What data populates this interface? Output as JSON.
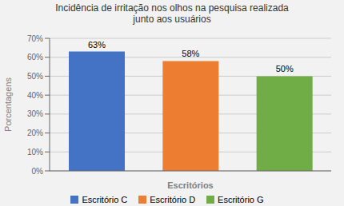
{
  "chart_data": {
    "type": "bar",
    "title": "Incidência de irritação nos olhos na pesquisa realizada\njunto aos usuários",
    "categories": [
      "Escritório C",
      "Escritório D",
      "Escritório G"
    ],
    "values": [
      63,
      58,
      50
    ],
    "value_labels": [
      "63%",
      "58%",
      "50%"
    ],
    "colors": [
      "#4472C4",
      "#ED7D31",
      "#70AD47"
    ],
    "xlabel": "Escritórios",
    "ylabel": "Porcentagens",
    "ylim": [
      0,
      70
    ],
    "yticks": [
      {
        "value": 0,
        "label": "0%"
      },
      {
        "value": 10,
        "label": "10%"
      },
      {
        "value": 20,
        "label": "20%"
      },
      {
        "value": 30,
        "label": "30%"
      },
      {
        "value": 40,
        "label": "40%"
      },
      {
        "value": 50,
        "label": "50%"
      },
      {
        "value": 60,
        "label": "60%"
      },
      {
        "value": 70,
        "label": "70%"
      }
    ],
    "grid": true,
    "legend": "bottom",
    "data_labels": true,
    "tick_labels": "y"
  }
}
